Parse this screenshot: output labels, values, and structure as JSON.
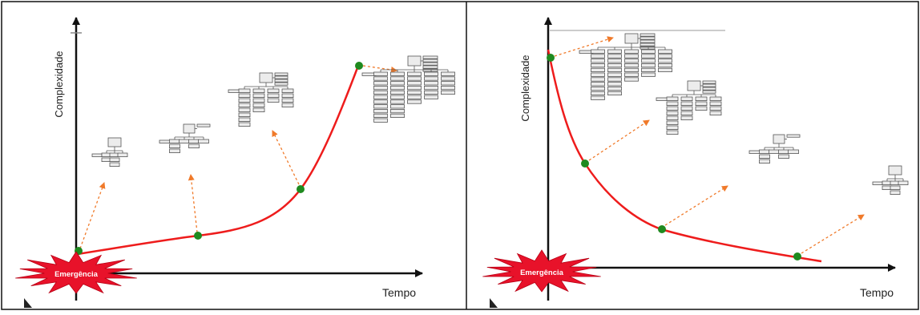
{
  "panels": [
    {
      "id": "growth",
      "y_axis_label": "Complexidade",
      "x_axis_label": "Tempo",
      "burst_label": "Emergência",
      "curve_description": "complexity rises over time",
      "node_count": 4
    },
    {
      "id": "decay",
      "y_axis_label": "Complexidade",
      "x_axis_label": "Tempo",
      "burst_label": "Emergência",
      "curve_description": "complexity falls over time",
      "node_count": 4
    }
  ],
  "colors": {
    "curve": "#ee1c1c",
    "node": "#1f8a1f",
    "arrow": "#f07a2a",
    "burst": "#e8122a",
    "axis": "#111111",
    "frame": "#111111",
    "org_box_stroke": "#555555",
    "org_box_fill": "#ececec"
  }
}
